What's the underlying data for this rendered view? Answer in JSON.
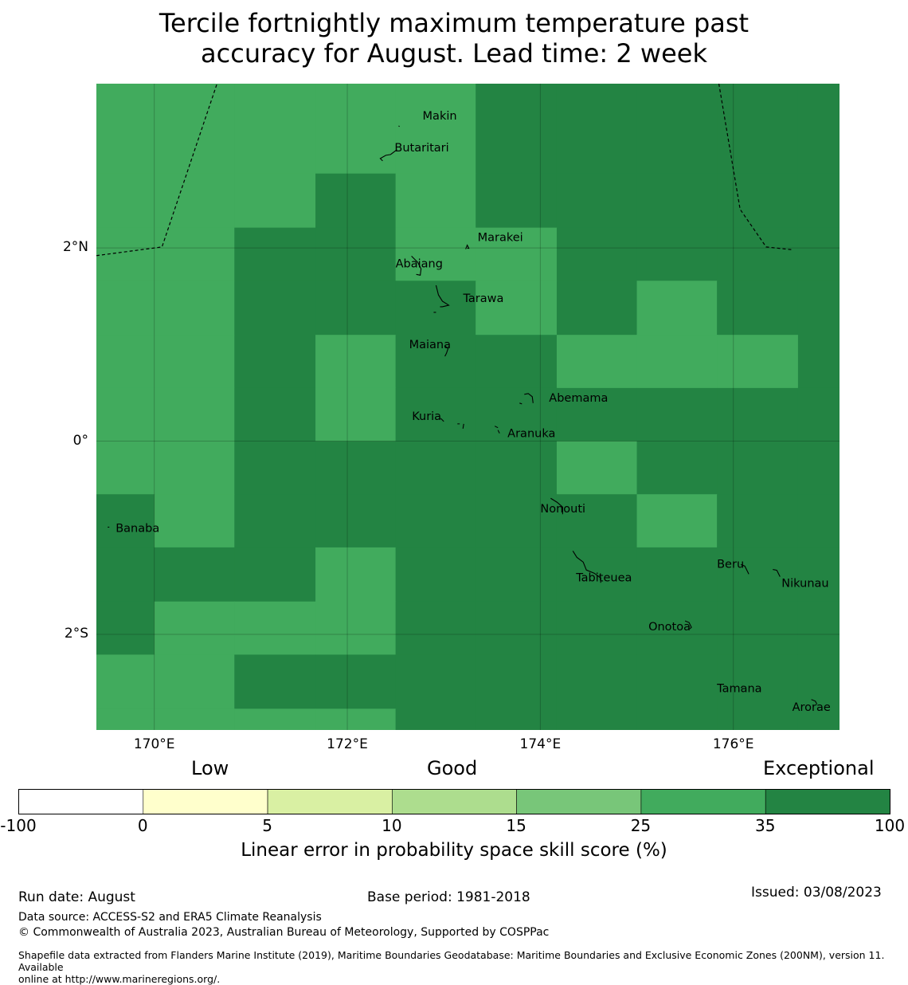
{
  "title_line1": "Tercile fortnightly maximum temperature past",
  "title_line2": "accuracy for August. Lead time: 2 week",
  "map": {
    "lon_range": [
      169.4,
      177.1
    ],
    "lat_range": [
      -2.99,
      3.7
    ],
    "lat_ticks": [
      {
        "value": 2,
        "label": "2°N"
      },
      {
        "value": 0,
        "label": "0°"
      },
      {
        "value": -2,
        "label": "2°S"
      }
    ],
    "lon_ticks": [
      {
        "value": 170,
        "label": "170°E"
      },
      {
        "value": 172,
        "label": "172°E"
      },
      {
        "value": 174,
        "label": "174°E"
      },
      {
        "value": 176,
        "label": "176°E"
      }
    ],
    "grid_lon_edges": [
      169.4,
      170.0,
      170.83,
      171.67,
      172.5,
      173.33,
      174.17,
      175.0,
      175.83,
      176.67,
      177.1
    ],
    "grid_lat_edges": [
      3.7,
      2.77,
      2.21,
      1.66,
      1.1,
      0.55,
      0.0,
      -0.55,
      -1.1,
      -1.66,
      -2.21,
      -2.77,
      -2.99
    ],
    "skill_grid": [
      [
        "good",
        "good",
        "good",
        "good",
        "good",
        "exc",
        "exc",
        "exc",
        "exc",
        "exc"
      ],
      [
        "good",
        "good",
        "good",
        "exc",
        "good",
        "exc",
        "exc",
        "exc",
        "exc",
        "exc"
      ],
      [
        "good",
        "good",
        "exc",
        "exc",
        "good",
        "good",
        "exc",
        "exc",
        "exc",
        "exc"
      ],
      [
        "good",
        "good",
        "exc",
        "exc",
        "exc",
        "good",
        "exc",
        "good",
        "exc",
        "exc"
      ],
      [
        "good",
        "good",
        "exc",
        "good",
        "exc",
        "exc",
        "good",
        "good",
        "good",
        "exc"
      ],
      [
        "good",
        "good",
        "exc",
        "good",
        "exc",
        "exc",
        "exc",
        "exc",
        "exc",
        "exc"
      ],
      [
        "good",
        "good",
        "exc",
        "exc",
        "exc",
        "exc",
        "good",
        "exc",
        "exc",
        "exc"
      ],
      [
        "exc",
        "good",
        "exc",
        "exc",
        "exc",
        "exc",
        "exc",
        "good",
        "exc",
        "exc"
      ],
      [
        "exc",
        "exc",
        "exc",
        "good",
        "exc",
        "exc",
        "exc",
        "exc",
        "exc",
        "exc"
      ],
      [
        "exc",
        "good",
        "good",
        "good",
        "exc",
        "exc",
        "exc",
        "exc",
        "exc",
        "exc"
      ],
      [
        "good",
        "good",
        "exc",
        "exc",
        "exc",
        "exc",
        "exc",
        "exc",
        "exc",
        "exc"
      ],
      [
        "good",
        "good",
        "good",
        "good",
        "exc",
        "exc",
        "exc",
        "exc",
        "exc",
        "exc"
      ]
    ],
    "skill_colors": {
      "good": "#41ab5d",
      "exc": "#238443"
    },
    "eez_boundary_west": [
      [
        169.4,
        1.92
      ],
      [
        170.08,
        2.01
      ],
      [
        170.65,
        3.7
      ]
    ],
    "eez_boundary_east": [
      [
        175.85,
        3.7
      ],
      [
        176.07,
        2.4
      ],
      [
        176.34,
        2.01
      ],
      [
        176.62,
        1.98
      ]
    ],
    "places": [
      {
        "name": "Makin",
        "lon": 172.78,
        "lat": 3.33
      },
      {
        "name": "Butaritari",
        "lon": 172.49,
        "lat": 3.0
      },
      {
        "name": "Marakei",
        "lon": 173.35,
        "lat": 2.07
      },
      {
        "name": "Abaiang",
        "lon": 172.5,
        "lat": 1.8
      },
      {
        "name": "Tarawa",
        "lon": 173.2,
        "lat": 1.44
      },
      {
        "name": "Maiana",
        "lon": 172.64,
        "lat": 0.96
      },
      {
        "name": "Abemama",
        "lon": 174.09,
        "lat": 0.41
      },
      {
        "name": "Kuria",
        "lon": 172.67,
        "lat": 0.22
      },
      {
        "name": "Aranuka",
        "lon": 173.66,
        "lat": 0.04
      },
      {
        "name": "Nonouti",
        "lon": 174.0,
        "lat": -0.74
      },
      {
        "name": "Banaba",
        "lon": 169.6,
        "lat": -0.94
      },
      {
        "name": "Beru",
        "lon": 175.83,
        "lat": -1.31
      },
      {
        "name": "Tabiteuea",
        "lon": 174.37,
        "lat": -1.45
      },
      {
        "name": "Nikunau",
        "lon": 176.5,
        "lat": -1.51
      },
      {
        "name": "Onotoa",
        "lon": 175.12,
        "lat": -1.96
      },
      {
        "name": "Tamana",
        "lon": 175.83,
        "lat": -2.6
      },
      {
        "name": "Arorae",
        "lon": 176.61,
        "lat": -2.79
      }
    ]
  },
  "colorbar": {
    "categories": [
      "Low",
      "Good",
      "Exceptional"
    ],
    "bounds": [
      "-100",
      "0",
      "5",
      "10",
      "15",
      "25",
      "35",
      "100"
    ],
    "colors": [
      "#ffffff",
      "#ffffcc",
      "#d9f0a3",
      "#addd8e",
      "#78c679",
      "#41ab5d",
      "#238443"
    ],
    "label": "Linear error in probability space skill score (%)"
  },
  "footer": {
    "run_date": "Run date: August",
    "base_period": "Base period: 1981-2018",
    "issued": "Issued: 03/08/2023",
    "data_source": "Data source: ACCESS-S2 and ERA5 Climate Reanalysis",
    "copyright": "© Commonwealth of Australia 2023, Australian Bureau of Meteorology, Supported by COSPPac",
    "shapefile_line1": "Shapefile data extracted from Flanders Marine Institute (2019), Maritime Boundaries Geodatabase: Maritime Boundaries and Exclusive Economic Zones (200NM), version 11. Available",
    "shapefile_line2": "online at http://www.marineregions.org/."
  }
}
